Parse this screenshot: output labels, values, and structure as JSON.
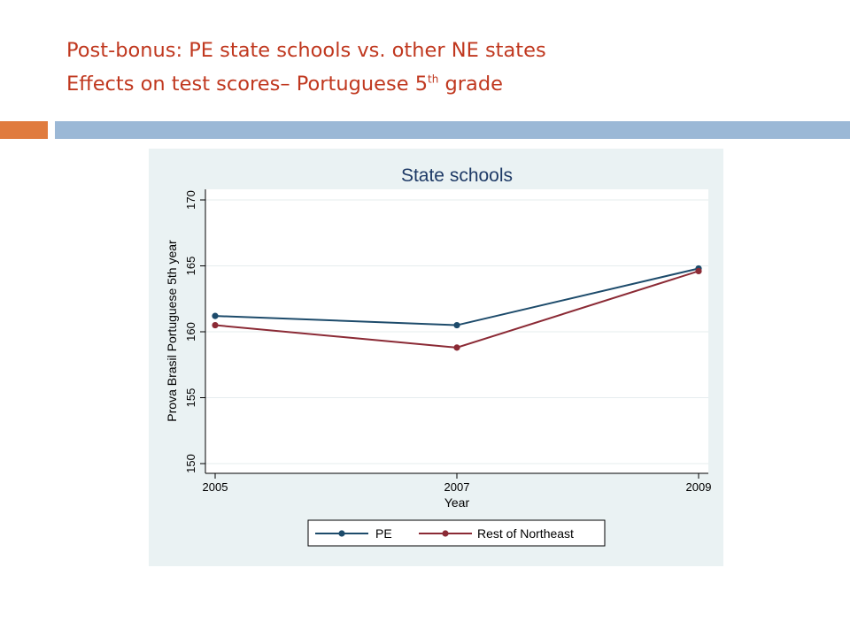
{
  "slide": {
    "title_line1": "Post-bonus: PE state schools vs. other NE states",
    "title_line2_pre": "Effects on test scores– Portuguese 5",
    "title_line2_sup": "th",
    "title_line2_post": " grade"
  },
  "colors": {
    "title": "#c0381f",
    "accent_bar": "#e07b3e",
    "rule_bar": "#9bb8d6",
    "panel_bg": "#eaf2f3",
    "plot_bg": "#ffffff",
    "grid": "#e6ecee",
    "pe": "#1d4b6b",
    "rest": "#8b2a35"
  },
  "chart_data": {
    "type": "line",
    "title": "State schools",
    "xlabel": "Year",
    "ylabel": "Prova Brasil Portuguese 5th year",
    "x": [
      2005,
      2007,
      2009
    ],
    "x_ticks": [
      "2005",
      "2007",
      "2009"
    ],
    "y_ticks": [
      "150",
      "155",
      "160",
      "165",
      "170"
    ],
    "ylim": [
      150,
      170
    ],
    "grid": true,
    "legend_position": "bottom",
    "series": [
      {
        "name": "PE",
        "values": [
          161.2,
          160.5,
          164.8
        ],
        "color": "#1d4b6b"
      },
      {
        "name": "Rest of Northeast",
        "values": [
          160.5,
          158.8,
          164.6
        ],
        "color": "#8b2a35"
      }
    ]
  }
}
